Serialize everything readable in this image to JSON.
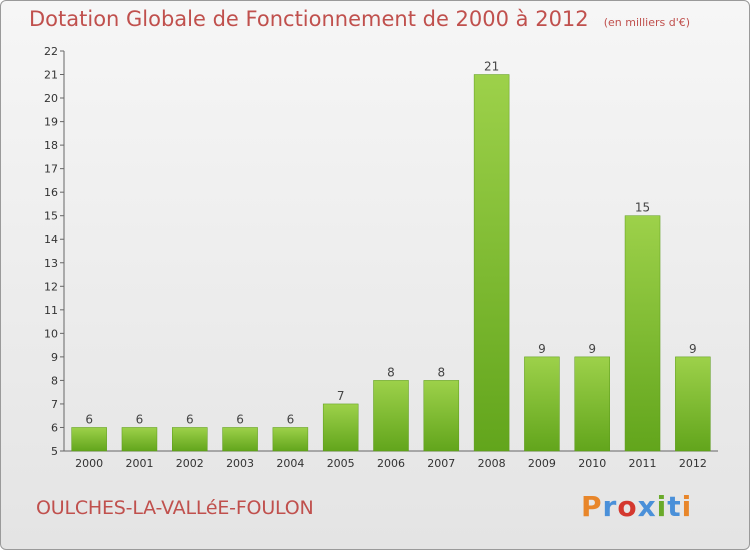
{
  "header": {
    "title": "Dotation Globale de Fonctionnement de 2000 à 2012",
    "subtitle": "(en milliers d'€)"
  },
  "footer": {
    "commune": "OULCHES-LA-VALLéE-FOULON",
    "logo_text": "Proxiti",
    "logo_colors": [
      "#e8862a",
      "#4a90d9",
      "#d4382f",
      "#4a90d9",
      "#6aaa2a",
      "#4a90d9",
      "#e8862a"
    ]
  },
  "colors": {
    "bar_top": "#9dd14a",
    "bar_bottom": "#62a51c",
    "bar_stroke": "#5a9a18",
    "title": "#c0504d"
  },
  "chart_data": {
    "type": "bar",
    "categories": [
      "2000",
      "2001",
      "2002",
      "2003",
      "2004",
      "2005",
      "2006",
      "2007",
      "2008",
      "2009",
      "2010",
      "2011",
      "2012"
    ],
    "values": [
      6,
      6,
      6,
      6,
      6,
      7,
      8,
      8,
      21,
      9,
      9,
      15,
      9
    ],
    "data_labels": [
      "6",
      "6",
      "6",
      "6",
      "6",
      "7",
      "8",
      "8",
      "21",
      "9",
      "9",
      "15",
      "9"
    ],
    "yticks": [
      "5",
      "6",
      "7",
      "8",
      "9",
      "10",
      "11",
      "12",
      "13",
      "14",
      "15",
      "16",
      "17",
      "18",
      "19",
      "20",
      "21",
      "22"
    ],
    "ylim": [
      5,
      22
    ],
    "title": "Dotation Globale de Fonctionnement de 2000 à 2012",
    "xlabel": "",
    "ylabel": "",
    "grid": false,
    "legend": "none"
  }
}
